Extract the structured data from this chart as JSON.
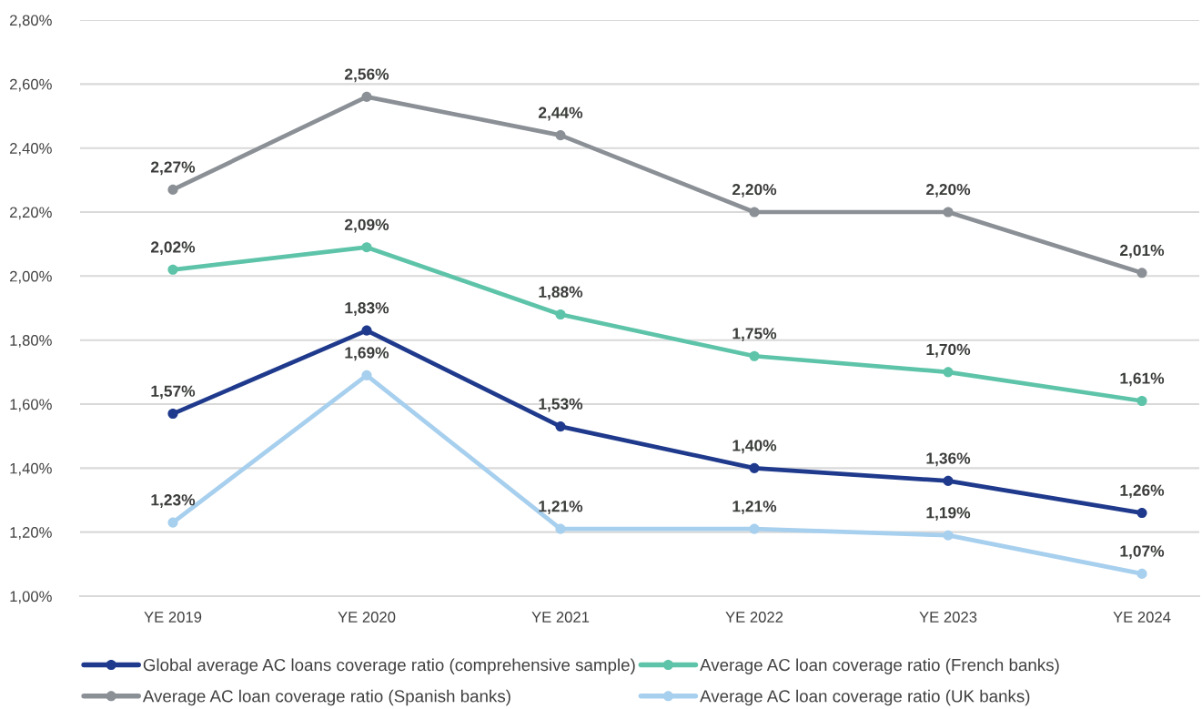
{
  "chart_data": {
    "type": "line",
    "categories": [
      "YE 2019",
      "YE 2020",
      "YE 2021",
      "YE 2022",
      "YE 2023",
      "YE 2024"
    ],
    "series": [
      {
        "name": "Global average AC loans coverage ratio (comprehensive sample)",
        "color": "#1f3a8c",
        "values": [
          1.57,
          1.83,
          1.53,
          1.4,
          1.36,
          1.26
        ],
        "value_labels": [
          "1,57%",
          "1,83%",
          "1,53%",
          "1,40%",
          "1,36%",
          "1,26%"
        ]
      },
      {
        "name": "Average AC loan coverage ratio (French banks)",
        "color": "#5ec4a9",
        "values": [
          2.02,
          2.09,
          1.88,
          1.75,
          1.7,
          1.61
        ],
        "value_labels": [
          "2,02%",
          "2,09%",
          "1,88%",
          "1,75%",
          "1,70%",
          "1,61%"
        ]
      },
      {
        "name": "Average AC loan coverage ratio (Spanish banks)",
        "color": "#8b9096",
        "values": [
          2.27,
          2.56,
          2.44,
          2.2,
          2.2,
          2.01
        ],
        "value_labels": [
          "2,27%",
          "2,56%",
          "2,44%",
          "2,20%",
          "2,20%",
          "2,01%"
        ]
      },
      {
        "name": "Average AC loan coverage ratio (UK banks)",
        "color": "#a7cfee",
        "values": [
          1.23,
          1.69,
          1.21,
          1.21,
          1.19,
          1.07
        ],
        "value_labels": [
          "1,23%",
          "1,69%",
          "1,21%",
          "1,21%",
          "1,19%",
          "1,07%"
        ]
      }
    ],
    "ylim": [
      1.0,
      2.8
    ],
    "yticks": [
      {
        "value": 1.0,
        "label": "1,00%"
      },
      {
        "value": 1.2,
        "label": "1,20%"
      },
      {
        "value": 1.4,
        "label": "1,40%"
      },
      {
        "value": 1.6,
        "label": "1,60%"
      },
      {
        "value": 1.8,
        "label": "1,80%"
      },
      {
        "value": 2.0,
        "label": "2,00%"
      },
      {
        "value": 2.2,
        "label": "2,20%"
      },
      {
        "value": 2.4,
        "label": "2,40%"
      },
      {
        "value": 2.6,
        "label": "2,60%"
      },
      {
        "value": 2.8,
        "label": "2,80%"
      }
    ],
    "grid": "y",
    "legend": "bottom",
    "marker": "circle",
    "line_style": "solid"
  }
}
